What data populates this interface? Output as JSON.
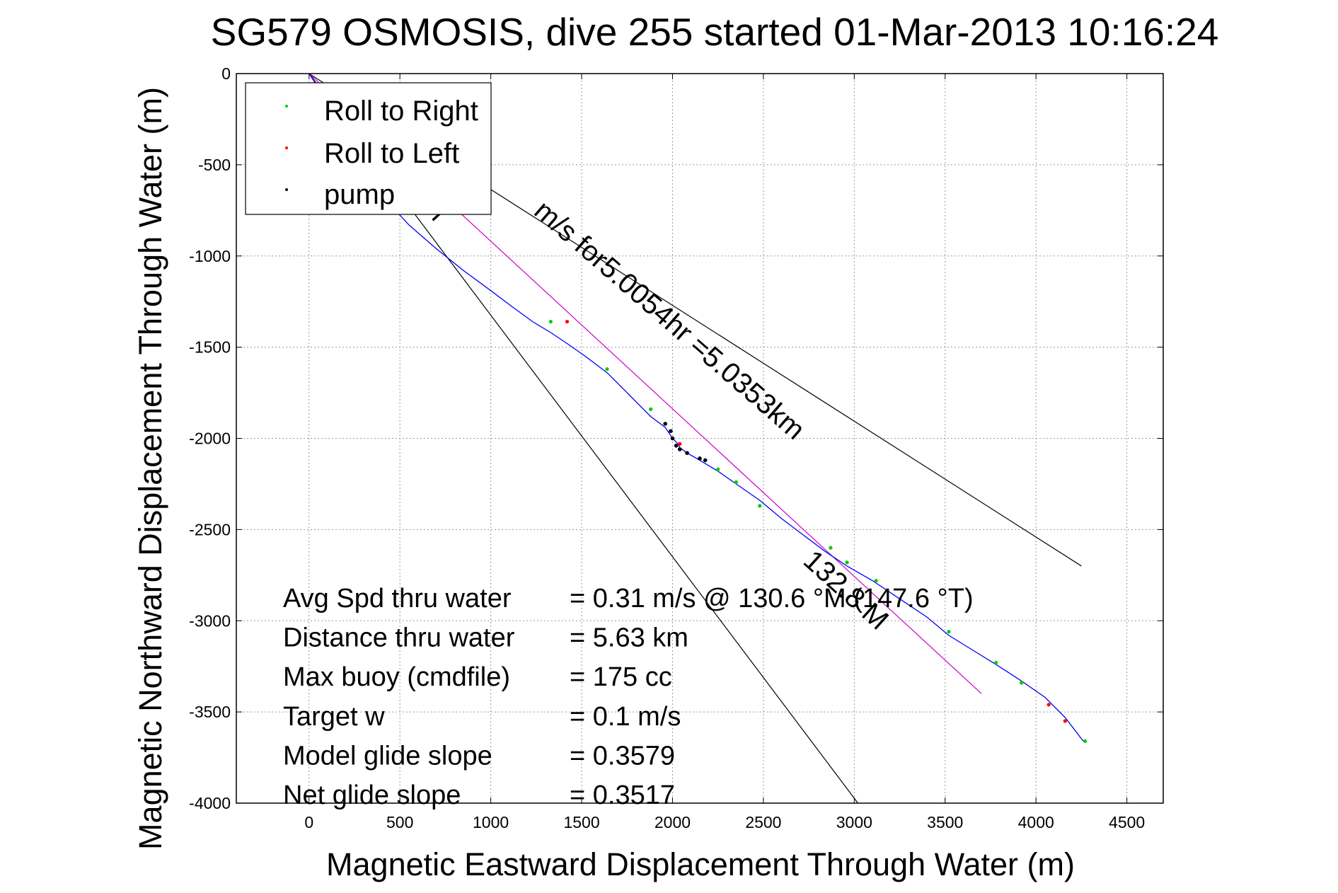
{
  "chart_data": {
    "type": "line",
    "title": "SG579 OSMOSIS, dive 255 started 01-Mar-2013 10:16:24",
    "xlabel": "Magnetic Eastward Displacement Through Water (m)",
    "ylabel": "Magnetic Northward Displacement Through Water (m)",
    "xlim": [
      -400,
      4700
    ],
    "ylim": [
      -4000,
      0
    ],
    "xticks": [
      0,
      500,
      1000,
      1500,
      2000,
      2500,
      3000,
      3500,
      4000,
      4500
    ],
    "yticks": [
      0,
      -500,
      -1000,
      -1500,
      -2000,
      -2500,
      -3000,
      -3500,
      -4000
    ],
    "grid": true,
    "legend": {
      "position": "top-left",
      "entries": [
        {
          "name": "Roll to Right",
          "color": "#00cc00"
        },
        {
          "name": "Roll to Left",
          "color": "#ff0000"
        },
        {
          "name": "pump",
          "color": "#000000"
        }
      ]
    },
    "track": {
      "color": "#0000ff",
      "x": [
        0,
        40,
        100,
        200,
        300,
        420,
        550,
        700,
        850,
        1000,
        1120,
        1230,
        1330,
        1420,
        1520,
        1640,
        1760,
        1880,
        1960,
        2000,
        2030,
        2040,
        2080,
        2150,
        2250,
        2350,
        2480,
        2600,
        2720,
        2840,
        2960,
        3100,
        3250,
        3400,
        3520,
        3650,
        3780,
        3920,
        4050,
        4160,
        4260
      ],
      "y": [
        0,
        -60,
        -200,
        -380,
        -540,
        -690,
        -830,
        -960,
        -1080,
        -1190,
        -1280,
        -1360,
        -1420,
        -1480,
        -1550,
        -1640,
        -1760,
        -1880,
        -1940,
        -2000,
        -2030,
        -2050,
        -2080,
        -2120,
        -2180,
        -2250,
        -2340,
        -2440,
        -2530,
        -2620,
        -2700,
        -2780,
        -2880,
        -2980,
        -3080,
        -3160,
        -3240,
        -3330,
        -3420,
        -3530,
        -3660
      ]
    },
    "roll_right_points": {
      "x": [
        1330,
        1640,
        1880,
        2250,
        2350,
        2480,
        2870,
        2960,
        3120,
        3520,
        3780,
        3920,
        4270
      ],
      "y": [
        -1360,
        -1620,
        -1840,
        -2170,
        -2240,
        -2370,
        -2600,
        -2680,
        -2780,
        -3060,
        -3230,
        -3340,
        -3660
      ]
    },
    "roll_left_points": {
      "x": [
        1420,
        2040,
        4070,
        4160
      ],
      "y": [
        -1360,
        -2030,
        -3460,
        -3550
      ]
    },
    "pump_points": {
      "x": [
        1960,
        1990,
        2000,
        2020,
        2040,
        2080,
        2150,
        2180
      ],
      "y": [
        -1920,
        -1960,
        -2000,
        -2040,
        -2060,
        -2080,
        -2110,
        -2120
      ]
    },
    "reference_lines": [
      {
        "color": "#000000",
        "x": [
          0,
          4250
        ],
        "y": [
          0,
          -2700
        ]
      },
      {
        "color": "#000000",
        "x": [
          0,
          3020
        ],
        "y": [
          0,
          -4000
        ]
      },
      {
        "color": "#cc00cc",
        "x": [
          0,
          3700
        ],
        "y": [
          0,
          -3400
        ]
      }
    ],
    "annotations": [
      {
        "text": "m/s for5.0054hr =5.0353km",
        "x": 1950,
        "y": -1390,
        "angle": 41
      },
      {
        "text": "M",
        "x": 650,
        "y": -770,
        "angle": 48
      },
      {
        "text": "132.8 M",
        "x": 2920,
        "y": -2870,
        "angle": 42
      }
    ],
    "stats": [
      {
        "label": "Avg Spd thru water",
        "value": "=  0.31 m/s @ 130.6 °M (147.6 °T)"
      },
      {
        "label": "Distance thru water",
        "value": "=  5.63 km"
      },
      {
        "label": "Max buoy (cmdfile)",
        "value": "= 175 cc"
      },
      {
        "label": "Target w",
        "value": "= 0.1 m/s"
      },
      {
        "label": "Model glide slope",
        "value": "= 0.3579"
      },
      {
        "label": "Net glide slope",
        "value": "= 0.3517"
      }
    ]
  }
}
